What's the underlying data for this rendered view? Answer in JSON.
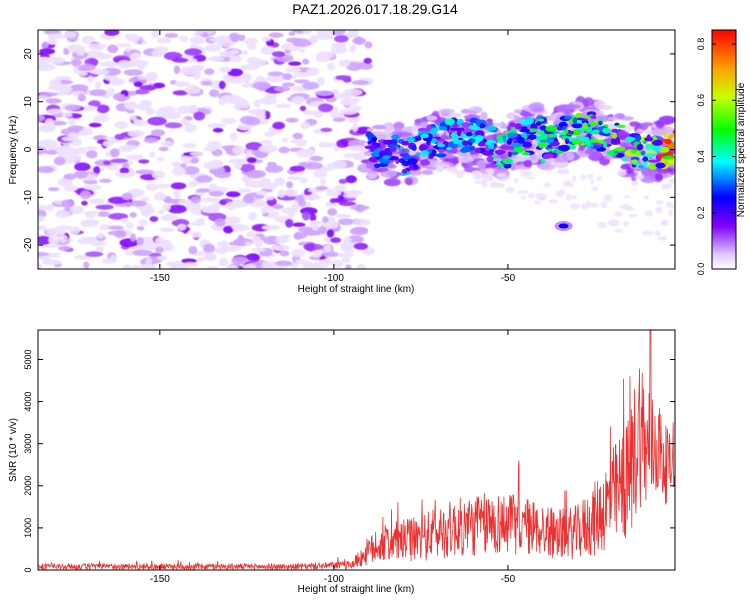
{
  "title": "PAZ1.2026.017.18.29.G14",
  "colors": {
    "background": "#ffffff",
    "axis": "#000000",
    "snr_line": "#ee3030",
    "spectro_low": "#e6ccff",
    "spectro_mid": "#7a00ff",
    "spectro_high": "#ff0000"
  },
  "chart_data": [
    {
      "type": "heatmap",
      "title": "PAZ1.2026.017.18.29.G14",
      "xlabel": "Height of straight line (km)",
      "ylabel": "Frequency (Hz)",
      "xlim": [
        -185,
        -2
      ],
      "ylim": [
        -25,
        25
      ],
      "xticks": [
        -150,
        -100,
        -50
      ],
      "yticks": [
        -20,
        -10,
        0,
        10,
        20
      ],
      "colorbar": {
        "label": "Normalized spectral amplitude",
        "range": [
          0.0,
          0.85
        ],
        "ticks": [
          0.0,
          0.2,
          0.4,
          0.6,
          0.8
        ],
        "colormap": "rainbow"
      },
      "features": [
        {
          "name": "broadband noise",
          "x_range": [
            -185,
            -90
          ],
          "freq_range": [
            -25,
            25
          ],
          "amplitude": 0.08
        },
        {
          "name": "signal band",
          "x_range": [
            -90,
            -2
          ],
          "center_freq_at_start": 1.5,
          "center_freq_at_end": 2,
          "amplitude_range": [
            0.2,
            0.7
          ]
        },
        {
          "name": "isolated blob",
          "x": -34,
          "freq": -16,
          "amplitude": 0.25
        }
      ]
    },
    {
      "type": "line",
      "title": "",
      "xlabel": "Height of straight line (km)",
      "ylabel": "SNR (10 * v/v)",
      "xlim": [
        -185,
        -2
      ],
      "ylim": [
        0,
        5700
      ],
      "xticks": [
        -150,
        -100,
        -50
      ],
      "yticks": [
        0,
        1000,
        2000,
        3000,
        4000,
        5000
      ],
      "series": [
        {
          "name": "SNR",
          "envelope_x": [
            -185,
            -150,
            -110,
            -95,
            -90,
            -85,
            -80,
            -75,
            -70,
            -65,
            -60,
            -55,
            -50,
            -45,
            -40,
            -35,
            -30,
            -25,
            -20,
            -15,
            -12,
            -10,
            -7,
            -5,
            -2
          ],
          "envelope_mean": [
            80,
            80,
            80,
            120,
            450,
            650,
            700,
            750,
            900,
            1000,
            1050,
            1100,
            1100,
            1050,
            950,
            850,
            900,
            1200,
            1700,
            2200,
            3500,
            2700,
            3000,
            2500,
            2500
          ],
          "envelope_spread": [
            70,
            70,
            70,
            100,
            350,
            450,
            500,
            550,
            650,
            700,
            750,
            750,
            750,
            700,
            650,
            600,
            650,
            900,
            1200,
            1500,
            2000,
            1400,
            1300,
            1000,
            500
          ],
          "peak": {
            "x": -9,
            "y": 5700
          }
        }
      ]
    }
  ]
}
